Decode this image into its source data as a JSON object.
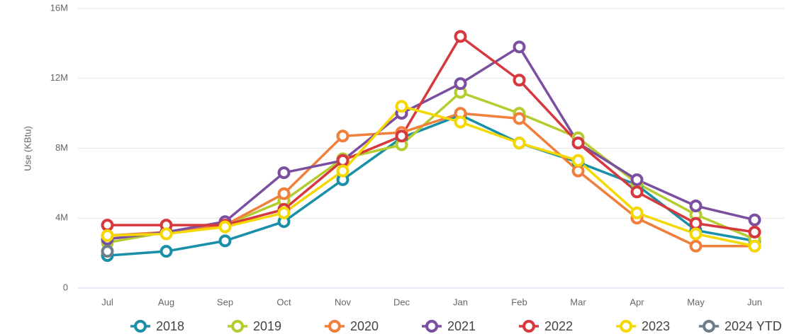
{
  "chart_data": {
    "type": "line",
    "y_label": "Use (KBtu)",
    "categories": [
      "Jul",
      "Aug",
      "Sep",
      "Oct",
      "Nov",
      "Dec",
      "Jan",
      "Feb",
      "Mar",
      "Apr",
      "May",
      "Jun"
    ],
    "ylim": [
      0,
      16000000
    ],
    "yticks": [
      0,
      {
        "value": 4000000,
        "label": "4M"
      },
      {
        "value": 8000000,
        "label": "8M"
      },
      {
        "value": 12000000,
        "label": "12M"
      },
      {
        "value": 16000000,
        "label": "16M"
      }
    ],
    "grid": true,
    "legend": "bottom",
    "series": [
      {
        "name": "2018",
        "color": "#1a8fa8",
        "values": [
          1860000,
          2100000,
          2700000,
          3800000,
          6200000,
          8600000,
          9900000,
          8300000,
          7200000,
          5900000,
          3300000,
          2700000
        ]
      },
      {
        "name": "2019",
        "color": "#b5cc2e",
        "values": [
          2600000,
          3200000,
          3600000,
          5000000,
          7400000,
          8200000,
          11200000,
          10000000,
          8600000,
          6000000,
          4200000,
          2800000
        ]
      },
      {
        "name": "2020",
        "color": "#f07f3c",
        "values": [
          3000000,
          3200000,
          3600000,
          5400000,
          8700000,
          8900000,
          10000000,
          9700000,
          6700000,
          4000000,
          2400000,
          2400000
        ]
      },
      {
        "name": "2021",
        "color": "#7b4fa0",
        "values": [
          2800000,
          3200000,
          3800000,
          6600000,
          7300000,
          10000000,
          11700000,
          13800000,
          8300000,
          6200000,
          4700000,
          3900000
        ]
      },
      {
        "name": "2022",
        "color": "#d7383d",
        "values": [
          3600000,
          3600000,
          3600000,
          4500000,
          7300000,
          8700000,
          14400000,
          11900000,
          8300000,
          5500000,
          3700000,
          3200000
        ]
      },
      {
        "name": "2023",
        "color": "#f5d800",
        "values": [
          3000000,
          3100000,
          3500000,
          4300000,
          6700000,
          10400000,
          9500000,
          8300000,
          7300000,
          4300000,
          3100000,
          2400000
        ]
      },
      {
        "name": "2024 YTD",
        "color": "#6e7f8a",
        "values": [
          2100000,
          null,
          null,
          null,
          null,
          null,
          null,
          null,
          null,
          null,
          null,
          null
        ]
      }
    ]
  }
}
